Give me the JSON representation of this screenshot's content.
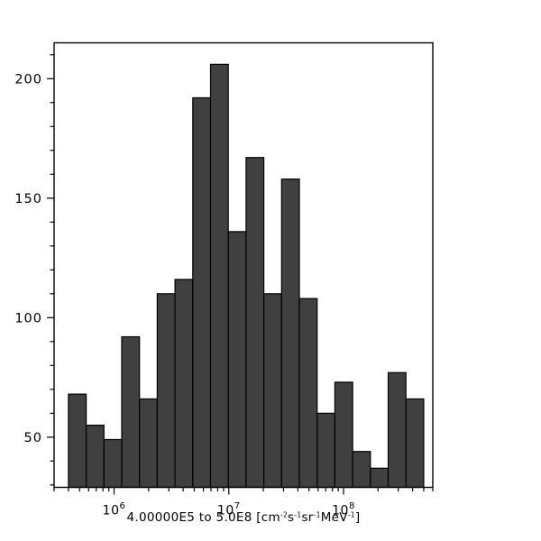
{
  "chart_data": {
    "type": "histogram",
    "title": "",
    "xlabel_plain": "4.00000E5 to 5.0E8 [cm-2s-1sr-1MeV-1]",
    "xlabel_parts": [
      {
        "text": "4.00000E5 to 5.0E8 [cm"
      },
      {
        "sup": "-2"
      },
      {
        "text": "s"
      },
      {
        "sup": "-1"
      },
      {
        "text": "sr"
      },
      {
        "sup": "-1"
      },
      {
        "text": "MeV"
      },
      {
        "sup": "-1"
      },
      {
        "text": "]"
      }
    ],
    "ylabel": "",
    "x_scale": "log",
    "y_scale": "linear",
    "xlim": [
      300000,
      600000000
    ],
    "ylim": [
      29,
      215
    ],
    "bin_range": [
      400000,
      500000000
    ],
    "n_bins": 20,
    "bin_spacing": "log",
    "bin_edges": [
      400000,
      571300,
      816100,
      1166000,
      1665000,
      2378000,
      3397000,
      4852000,
      6931000,
      9901000,
      14140000,
      20200000,
      28850000,
      41210000,
      58860000,
      84080000,
      120100000,
      171500000,
      245000000,
      350000000,
      500000000
    ],
    "values": [
      68,
      55,
      49,
      92,
      66,
      110,
      116,
      192,
      206,
      136,
      167,
      110,
      158,
      108,
      60,
      73,
      44,
      37,
      77,
      66
    ],
    "x_major_ticks": [
      {
        "value": 1000000,
        "base": "10",
        "exp": "6"
      },
      {
        "value": 10000000,
        "base": "10",
        "exp": "7"
      },
      {
        "value": 100000000,
        "base": "10",
        "exp": "8"
      }
    ],
    "y_major_ticks": [
      50,
      100,
      150,
      200
    ],
    "y_minor_tick_step": 10,
    "grid": false,
    "legend": null,
    "colors": {
      "bar_fill": "#404040",
      "bar_stroke": "#000000",
      "axis": "#000000",
      "text": "#000000",
      "background": "#ffffff"
    }
  }
}
